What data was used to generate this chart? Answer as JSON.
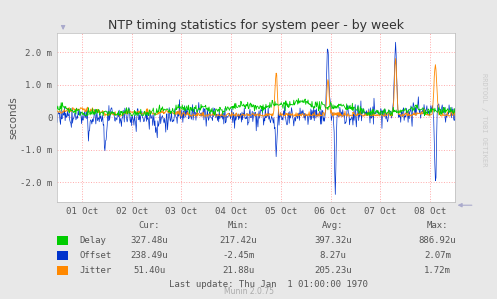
{
  "title": "NTP timing statistics for system peer - by week",
  "ylabel": "seconds",
  "background_color": "#e8e8e8",
  "plot_bg_color": "#ffffff",
  "grid_color": "#ffaaaa",
  "ylim": [
    -0.0026,
    0.0026
  ],
  "yticks": [
    -0.002,
    -0.001,
    0.0,
    0.001,
    0.002
  ],
  "ytick_labels": [
    "-2.0 m",
    "-1.0 m",
    "0",
    "1.0 m",
    "2.0 m"
  ],
  "xtick_labels": [
    "01 Oct",
    "02 Oct",
    "03 Oct",
    "04 Oct",
    "05 Oct",
    "06 Oct",
    "07 Oct",
    "08 Oct"
  ],
  "delay_color": "#00cc00",
  "offset_color": "#0033cc",
  "jitter_color": "#ff8800",
  "legend_items": [
    "Delay",
    "Offset",
    "Jitter"
  ],
  "stats_header": [
    "Cur:",
    "Min:",
    "Avg:",
    "Max:"
  ],
  "stats_delay": [
    "327.48u",
    "217.42u",
    "397.32u",
    "886.92u"
  ],
  "stats_offset": [
    "238.49u",
    "-2.45m",
    "8.27u",
    "2.07m"
  ],
  "stats_jitter": [
    "51.40u",
    "21.88u",
    "205.23u",
    "1.72m"
  ],
  "last_update": "Last update: Thu Jan  1 01:00:00 1970",
  "munin_version": "Munin 2.0.75",
  "watermark": "RRDTOOL / TOBI OETIKER",
  "n_points": 700,
  "seed": 42
}
